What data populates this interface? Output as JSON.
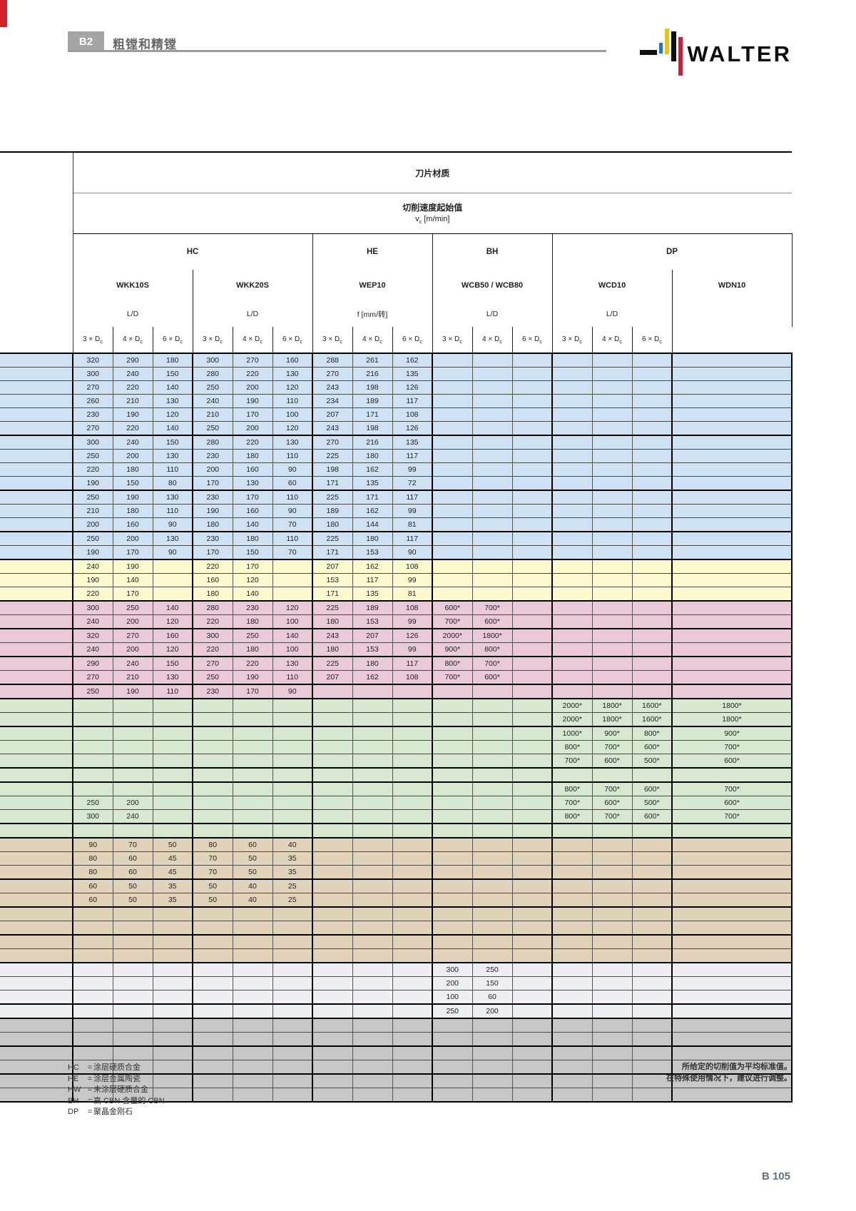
{
  "header": {
    "tab_label": "B2",
    "title": "粗镗和精镗",
    "logo_text": "WALTER"
  },
  "table": {
    "title": "刀片材质",
    "subtitle": "切削速度起始值",
    "v": "v",
    "v_sub": "c",
    "v_unit": " [m/min]",
    "groups": [
      {
        "label": "HC",
        "span": 6
      },
      {
        "label": "HE",
        "span": 3
      },
      {
        "label": "BH",
        "span": 3
      },
      {
        "label": "DP",
        "span": 4
      }
    ],
    "tools": [
      "WKK10S",
      "WKK20S",
      "WEP10",
      "WCB50 / WCB80",
      "WCD10",
      "WDN10"
    ],
    "units": [
      "L/D",
      "L/D",
      "f [mm/转]",
      "L/D",
      "L/D",
      ""
    ],
    "subcol_nums": [
      "3",
      "4",
      "6"
    ],
    "subcol_sep": " × ",
    "subcol_base": "D",
    "subcol_sub": "c",
    "section_colors": {
      "blue": "#cfe2f3",
      "yellow": "#fcf9cf",
      "pink": "#eac9db",
      "green": "#d7e8d1",
      "tan": "#e0d3ba",
      "light": "#eceff3",
      "gray": "#c7c7c7"
    },
    "rows": [
      {
        "s": "b",
        "g": 1,
        "v": [
          "320",
          "290",
          "180",
          "300",
          "270",
          "160",
          "288",
          "261",
          "162",
          "",
          "",
          "",
          "",
          "",
          "",
          ""
        ]
      },
      {
        "s": "b",
        "v": [
          "300",
          "240",
          "150",
          "280",
          "220",
          "130",
          "270",
          "216",
          "135",
          "",
          "",
          "",
          "",
          "",
          "",
          ""
        ]
      },
      {
        "s": "b",
        "v": [
          "270",
          "220",
          "140",
          "250",
          "200",
          "120",
          "243",
          "198",
          "126",
          "",
          "",
          "",
          "",
          "",
          "",
          ""
        ]
      },
      {
        "s": "b",
        "v": [
          "260",
          "210",
          "130",
          "240",
          "190",
          "110",
          "234",
          "189",
          "117",
          "",
          "",
          "",
          "",
          "",
          "",
          ""
        ]
      },
      {
        "s": "b",
        "v": [
          "230",
          "190",
          "120",
          "210",
          "170",
          "100",
          "207",
          "171",
          "108",
          "",
          "",
          "",
          "",
          "",
          "",
          ""
        ]
      },
      {
        "s": "b",
        "v": [
          "270",
          "220",
          "140",
          "250",
          "200",
          "120",
          "243",
          "198",
          "126",
          "",
          "",
          "",
          "",
          "",
          "",
          ""
        ]
      },
      {
        "s": "b",
        "g": 1,
        "v": [
          "300",
          "240",
          "150",
          "280",
          "220",
          "130",
          "270",
          "216",
          "135",
          "",
          "",
          "",
          "",
          "",
          "",
          ""
        ]
      },
      {
        "s": "b",
        "v": [
          "250",
          "200",
          "130",
          "230",
          "180",
          "110",
          "225",
          "180",
          "117",
          "",
          "",
          "",
          "",
          "",
          "",
          ""
        ]
      },
      {
        "s": "b",
        "v": [
          "220",
          "180",
          "110",
          "200",
          "160",
          "90",
          "198",
          "162",
          "99",
          "",
          "",
          "",
          "",
          "",
          "",
          ""
        ]
      },
      {
        "s": "b",
        "v": [
          "190",
          "150",
          "80",
          "170",
          "130",
          "60",
          "171",
          "135",
          "72",
          "",
          "",
          "",
          "",
          "",
          "",
          ""
        ]
      },
      {
        "s": "b",
        "g": 1,
        "v": [
          "250",
          "190",
          "130",
          "230",
          "170",
          "110",
          "225",
          "171",
          "117",
          "",
          "",
          "",
          "",
          "",
          "",
          ""
        ]
      },
      {
        "s": "b",
        "v": [
          "210",
          "180",
          "110",
          "190",
          "160",
          "90",
          "189",
          "162",
          "99",
          "",
          "",
          "",
          "",
          "",
          "",
          ""
        ]
      },
      {
        "s": "b",
        "v": [
          "200",
          "160",
          "90",
          "180",
          "140",
          "70",
          "180",
          "144",
          "81",
          "",
          "",
          "",
          "",
          "",
          "",
          ""
        ]
      },
      {
        "s": "b",
        "g": 1,
        "v": [
          "250",
          "200",
          "130",
          "230",
          "180",
          "110",
          "225",
          "180",
          "117",
          "",
          "",
          "",
          "",
          "",
          "",
          ""
        ]
      },
      {
        "s": "b",
        "v": [
          "190",
          "170",
          "90",
          "170",
          "150",
          "70",
          "171",
          "153",
          "90",
          "",
          "",
          "",
          "",
          "",
          "",
          ""
        ]
      },
      {
        "s": "y",
        "g": 1,
        "v": [
          "240",
          "190",
          "",
          "220",
          "170",
          "",
          "207",
          "162",
          "108",
          "",
          "",
          "",
          "",
          "",
          "",
          ""
        ]
      },
      {
        "s": "y",
        "v": [
          "190",
          "140",
          "",
          "160",
          "120",
          "",
          "153",
          "117",
          "99",
          "",
          "",
          "",
          "",
          "",
          "",
          ""
        ]
      },
      {
        "s": "y",
        "v": [
          "220",
          "170",
          "",
          "180",
          "140",
          "",
          "171",
          "135",
          "81",
          "",
          "",
          "",
          "",
          "",
          "",
          ""
        ]
      },
      {
        "s": "p",
        "g": 1,
        "v": [
          "300",
          "250",
          "140",
          "280",
          "230",
          "120",
          "225",
          "189",
          "108",
          "600*",
          "700*",
          "",
          "",
          "",
          "",
          ""
        ]
      },
      {
        "s": "p",
        "v": [
          "240",
          "200",
          "120",
          "220",
          "180",
          "100",
          "180",
          "153",
          "99",
          "700*",
          "600*",
          "",
          "",
          "",
          "",
          ""
        ]
      },
      {
        "s": "p",
        "g": 1,
        "v": [
          "320",
          "270",
          "160",
          "300",
          "250",
          "140",
          "243",
          "207",
          "126",
          "2000*",
          "1800*",
          "",
          "",
          "",
          "",
          ""
        ]
      },
      {
        "s": "p",
        "v": [
          "240",
          "200",
          "120",
          "220",
          "180",
          "100",
          "180",
          "153",
          "99",
          "900*",
          "800*",
          "",
          "",
          "",
          "",
          ""
        ]
      },
      {
        "s": "p",
        "g": 1,
        "v": [
          "290",
          "240",
          "150",
          "270",
          "220",
          "130",
          "225",
          "180",
          "117",
          "800*",
          "700*",
          "",
          "",
          "",
          "",
          ""
        ]
      },
      {
        "s": "p",
        "v": [
          "270",
          "210",
          "130",
          "250",
          "190",
          "110",
          "207",
          "162",
          "108",
          "700*",
          "600*",
          "",
          "",
          "",
          "",
          ""
        ]
      },
      {
        "s": "p",
        "g": 1,
        "v": [
          "250",
          "190",
          "110",
          "230",
          "170",
          "90",
          "",
          "",
          "",
          "",
          "",
          "",
          "",
          "",
          "",
          ""
        ]
      },
      {
        "s": "g",
        "g": 1,
        "v": [
          "",
          "",
          "",
          "",
          "",
          "",
          "",
          "",
          "",
          "",
          "",
          "",
          "2000*",
          "1800*",
          "1600*",
          "1800*"
        ]
      },
      {
        "s": "g",
        "v": [
          "",
          "",
          "",
          "",
          "",
          "",
          "",
          "",
          "",
          "",
          "",
          "",
          "2000*",
          "1800*",
          "1600*",
          "1800*"
        ]
      },
      {
        "s": "g",
        "g": 1,
        "v": [
          "",
          "",
          "",
          "",
          "",
          "",
          "",
          "",
          "",
          "",
          "",
          "",
          "1000*",
          "900*",
          "800*",
          "900*"
        ]
      },
      {
        "s": "g",
        "v": [
          "",
          "",
          "",
          "",
          "",
          "",
          "",
          "",
          "",
          "",
          "",
          "",
          "800*",
          "700*",
          "600*",
          "700*"
        ]
      },
      {
        "s": "g",
        "v": [
          "",
          "",
          "",
          "",
          "",
          "",
          "",
          "",
          "",
          "",
          "",
          "",
          "700*",
          "600*",
          "500*",
          "600*"
        ]
      },
      {
        "s": "g",
        "g": 1,
        "v": [
          "",
          "",
          "",
          "",
          "",
          "",
          "",
          "",
          "",
          "",
          "",
          "",
          "",
          "",
          "",
          ""
        ]
      },
      {
        "s": "g",
        "g": 1,
        "v": [
          "",
          "",
          "",
          "",
          "",
          "",
          "",
          "",
          "",
          "",
          "",
          "",
          "800*",
          "700*",
          "600*",
          "700*"
        ]
      },
      {
        "s": "g",
        "v": [
          "250",
          "200",
          "",
          "",
          "",
          "",
          "",
          "",
          "",
          "",
          "",
          "",
          "700*",
          "600*",
          "500*",
          "600*"
        ]
      },
      {
        "s": "g",
        "v": [
          "300",
          "240",
          "",
          "",
          "",
          "",
          "",
          "",
          "",
          "",
          "",
          "",
          "800*",
          "700*",
          "600*",
          "700*"
        ]
      },
      {
        "s": "g",
        "g": 1,
        "v": [
          "",
          "",
          "",
          "",
          "",
          "",
          "",
          "",
          "",
          "",
          "",
          "",
          "",
          "",
          "",
          ""
        ]
      },
      {
        "s": "t",
        "g": 1,
        "v": [
          "90",
          "70",
          "50",
          "80",
          "60",
          "40",
          "",
          "",
          "",
          "",
          "",
          "",
          "",
          "",
          "",
          ""
        ]
      },
      {
        "s": "t",
        "v": [
          "80",
          "60",
          "45",
          "70",
          "50",
          "35",
          "",
          "",
          "",
          "",
          "",
          "",
          "",
          "",
          "",
          ""
        ]
      },
      {
        "s": "t",
        "v": [
          "80",
          "60",
          "45",
          "70",
          "50",
          "35",
          "",
          "",
          "",
          "",
          "",
          "",
          "",
          "",
          "",
          ""
        ]
      },
      {
        "s": "t",
        "g": 1,
        "v": [
          "60",
          "50",
          "35",
          "50",
          "40",
          "25",
          "",
          "",
          "",
          "",
          "",
          "",
          "",
          "",
          "",
          ""
        ]
      },
      {
        "s": "t",
        "v": [
          "60",
          "50",
          "35",
          "50",
          "40",
          "25",
          "",
          "",
          "",
          "",
          "",
          "",
          "",
          "",
          "",
          ""
        ]
      },
      {
        "s": "t",
        "g": 1,
        "v": [
          "",
          "",
          "",
          "",
          "",
          "",
          "",
          "",
          "",
          "",
          "",
          "",
          "",
          "",
          "",
          ""
        ]
      },
      {
        "s": "t",
        "v": [
          "",
          "",
          "",
          "",
          "",
          "",
          "",
          "",
          "",
          "",
          "",
          "",
          "",
          "",
          "",
          ""
        ]
      },
      {
        "s": "t",
        "g": 1,
        "v": [
          "",
          "",
          "",
          "",
          "",
          "",
          "",
          "",
          "",
          "",
          "",
          "",
          "",
          "",
          "",
          ""
        ]
      },
      {
        "s": "t",
        "v": [
          "",
          "",
          "",
          "",
          "",
          "",
          "",
          "",
          "",
          "",
          "",
          "",
          "",
          "",
          "",
          ""
        ]
      },
      {
        "s": "l",
        "g": 1,
        "v": [
          "",
          "",
          "",
          "",
          "",
          "",
          "",
          "",
          "",
          "300",
          "250",
          "",
          "",
          "",
          "",
          ""
        ]
      },
      {
        "s": "l",
        "v": [
          "",
          "",
          "",
          "",
          "",
          "",
          "",
          "",
          "",
          "200",
          "150",
          "",
          "",
          "",
          "",
          ""
        ]
      },
      {
        "s": "l",
        "v": [
          "",
          "",
          "",
          "",
          "",
          "",
          "",
          "",
          "",
          "100",
          "60",
          "",
          "",
          "",
          "",
          ""
        ]
      },
      {
        "s": "l",
        "g": 1,
        "v": [
          "",
          "",
          "",
          "",
          "",
          "",
          "",
          "",
          "",
          "250",
          "200",
          "",
          "",
          "",
          "",
          ""
        ]
      },
      {
        "s": "x",
        "g": 1,
        "v": [
          "",
          "",
          "",
          "",
          "",
          "",
          "",
          "",
          "",
          "",
          "",
          "",
          "",
          "",
          "",
          ""
        ]
      },
      {
        "s": "x",
        "v": [
          "",
          "",
          "",
          "",
          "",
          "",
          "",
          "",
          "",
          "",
          "",
          "",
          "",
          "",
          "",
          ""
        ]
      },
      {
        "s": "x",
        "g": 1,
        "v": [
          "",
          "",
          "",
          "",
          "",
          "",
          "",
          "",
          "",
          "",
          "",
          "",
          "",
          "",
          "",
          ""
        ]
      },
      {
        "s": "x",
        "v": [
          "",
          "",
          "",
          "",
          "",
          "",
          "",
          "",
          "",
          "",
          "",
          "",
          "",
          "",
          "",
          ""
        ]
      },
      {
        "s": "x",
        "g": 1,
        "v": [
          "",
          "",
          "",
          "",
          "",
          "",
          "",
          "",
          "",
          "",
          "",
          "",
          "",
          "",
          "",
          ""
        ]
      },
      {
        "s": "x",
        "v": [
          "",
          "",
          "",
          "",
          "",
          "",
          "",
          "",
          "",
          "",
          "",
          "",
          "",
          "",
          "",
          ""
        ]
      }
    ]
  },
  "legend": {
    "sep": "=",
    "items": [
      {
        "code": "HC",
        "label": "涂层硬质合金"
      },
      {
        "code": "HE",
        "label": "涂层金属陶瓷"
      },
      {
        "code": "HW",
        "label": "未涂层硬质合金"
      },
      {
        "code": "BH",
        "label": "高 CBN 含量的 CBN"
      },
      {
        "code": "DP",
        "label": "聚晶金刚石"
      }
    ]
  },
  "note": {
    "line1": "所给定的切削值为平均标准值。",
    "line2": "在特殊使用情况下，建议进行调整。"
  },
  "page_number": "B 105"
}
